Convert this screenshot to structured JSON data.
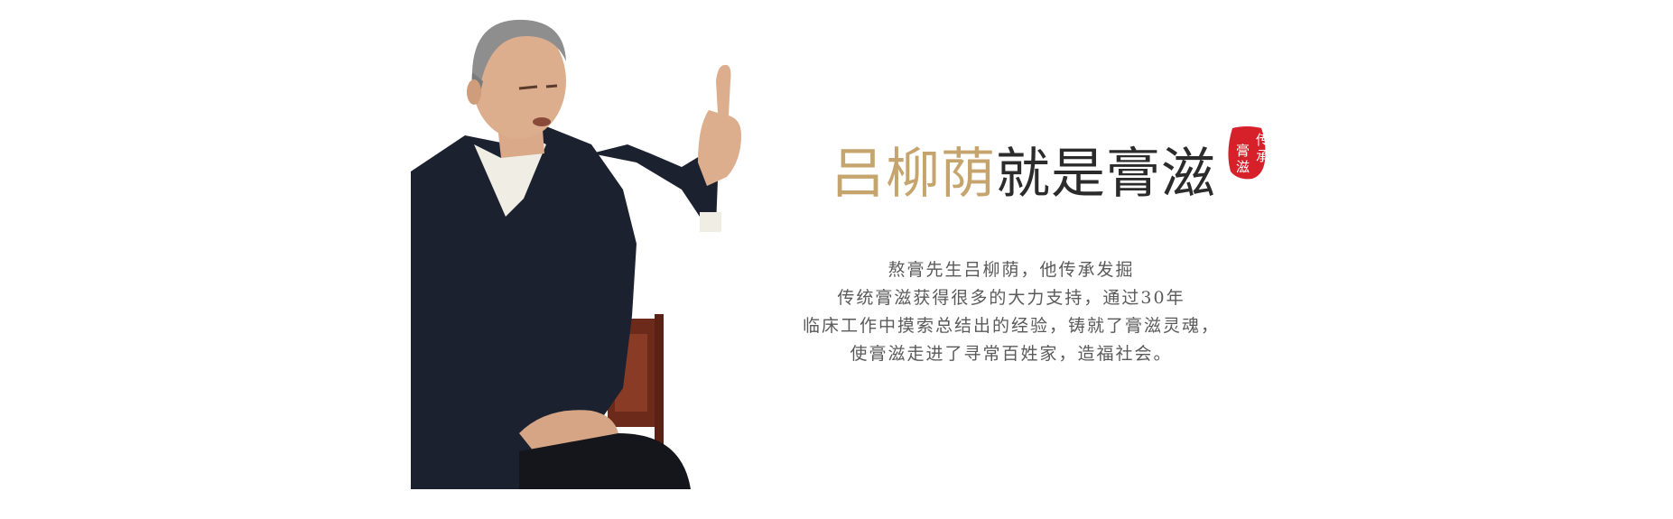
{
  "heading": {
    "name": "吕柳荫",
    "rest": "就是膏滋"
  },
  "seal": {
    "text": "传承膏滋",
    "color": "#d6202a"
  },
  "description": {
    "lines": [
      "熬膏先生吕柳荫，他传承发掘",
      "传统膏滋获得很多的大力支持，通过30年",
      "临床工作中摸索总结出的经验，铸就了膏滋灵魂，",
      "使膏滋走进了寻常百姓家，造福社会。"
    ]
  },
  "colors": {
    "name_gold": "#c6a46d",
    "heading_dark": "#2b2b2b",
    "body_gray": "#5a5a5a",
    "jacket": "#1c2130"
  }
}
